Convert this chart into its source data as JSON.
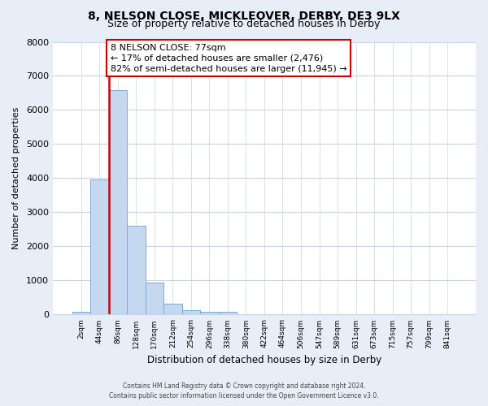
{
  "title": "8, NELSON CLOSE, MICKLEOVER, DERBY, DE3 9LX",
  "subtitle": "Size of property relative to detached houses in Derby",
  "xlabel": "Distribution of detached houses by size in Derby",
  "ylabel": "Number of detached properties",
  "bar_labels": [
    "2sqm",
    "44sqm",
    "86sqm",
    "128sqm",
    "170sqm",
    "212sqm",
    "254sqm",
    "296sqm",
    "338sqm",
    "380sqm",
    "422sqm",
    "464sqm",
    "506sqm",
    "547sqm",
    "589sqm",
    "631sqm",
    "673sqm",
    "715sqm",
    "757sqm",
    "799sqm",
    "841sqm"
  ],
  "bar_heights": [
    75,
    3975,
    6575,
    2600,
    950,
    325,
    125,
    75,
    75,
    0,
    0,
    0,
    0,
    0,
    0,
    0,
    0,
    0,
    0,
    0,
    0
  ],
  "bar_color": "#c5d8ef",
  "bar_edge_color": "#7baad4",
  "property_line_color": "#cc0000",
  "ylim": [
    0,
    8000
  ],
  "yticks": [
    0,
    1000,
    2000,
    3000,
    4000,
    5000,
    6000,
    7000,
    8000
  ],
  "annotation_title": "8 NELSON CLOSE: 77sqm",
  "annotation_line1": "← 17% of detached houses are smaller (2,476)",
  "annotation_line2": "82% of semi-detached houses are larger (11,945) →",
  "annotation_box_color": "#ffffff",
  "annotation_box_edge": "#cc0000",
  "footer_line1": "Contains HM Land Registry data © Crown copyright and database right 2024.",
  "footer_line2": "Contains public sector information licensed under the Open Government Licence v3.0.",
  "bg_color": "#e8eef8",
  "plot_bg_color": "#ffffff",
  "grid_color": "#c8d4e8"
}
